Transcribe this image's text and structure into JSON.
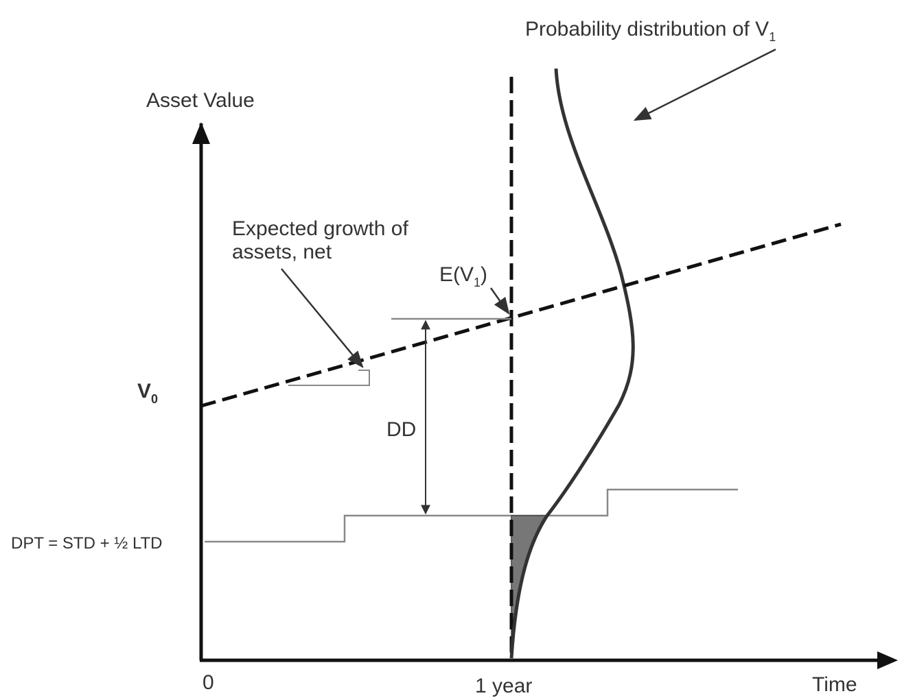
{
  "labels": {
    "probability": {
      "text": "Probability distribution of V",
      "sub": "1"
    },
    "y_axis": "Asset Value",
    "x_axis": "Time",
    "growth": [
      "Expected growth of",
      "assets, net"
    ],
    "expected": {
      "text": "E(V",
      "sub": "1",
      "tail": ")"
    },
    "start_value": {
      "text": "V",
      "sub": "0"
    },
    "distance": "DD",
    "default_point": "DPT = STD + ½ LTD",
    "x_origin": "0",
    "x_one_year": "1 year"
  }
}
